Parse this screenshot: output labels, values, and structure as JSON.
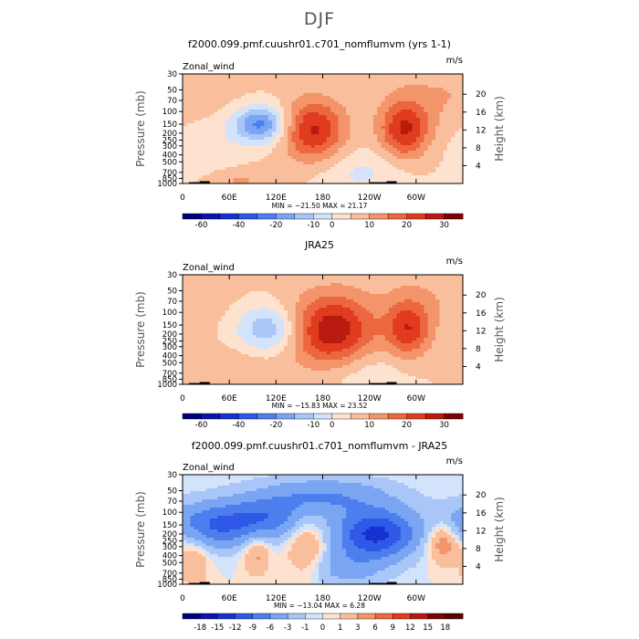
{
  "page": {
    "main_title": "DJF"
  },
  "panels": [
    {
      "id": "model",
      "title": "f2000.099.pmf.cuushr01.c701_nomflumvm (yrs 1-1)",
      "variable": "Zonal_wind",
      "units": "m/s",
      "stats": "MIN = −21.50   MAX =  21.17",
      "palette": "full",
      "colorbar_labels": [
        "-60",
        "-40",
        "-20",
        "-10",
        "0",
        "10",
        "20",
        "30"
      ]
    },
    {
      "id": "obs",
      "title": "JRA25",
      "variable": "Zonal_wind",
      "units": "m/s",
      "stats": "MIN = −15.83   MAX =  23.52",
      "palette": "full",
      "colorbar_labels": [
        "-60",
        "-40",
        "-20",
        "-10",
        "0",
        "10",
        "20",
        "30"
      ]
    },
    {
      "id": "diff",
      "title": "f2000.099.pmf.cuushr01.c701_nomflumvm - JRA25",
      "variable": "Zonal_wind",
      "units": "m/s",
      "stats": "MIN = −13.04   MAX =    6.28",
      "palette": "diff",
      "colorbar_labels": [
        "-18",
        "-15",
        "-12",
        "-9",
        "-6",
        "-3",
        "-1",
        "0",
        "1",
        "3",
        "6",
        "9",
        "12",
        "15",
        "18"
      ]
    }
  ],
  "chart_data": [
    {
      "type": "heatmap",
      "title": "f2000.099.pmf.cuushr01.c701_nomflumvm (yrs 1-1)",
      "xlabel": "",
      "ylabel": "Pressure (mb)",
      "y2label": "Height (km)",
      "x_ticks": [
        "0",
        "60E",
        "120E",
        "180",
        "120W",
        "60W"
      ],
      "x_tick_values": [
        0,
        60,
        120,
        180,
        240,
        300
      ],
      "xlim": [
        0,
        360
      ],
      "y_ticks": [
        "30",
        "50",
        "70",
        "100",
        "150",
        "200",
        "250",
        "300",
        "400",
        "500",
        "700",
        "850",
        "1000"
      ],
      "y_tick_values": [
        30,
        50,
        70,
        100,
        150,
        200,
        250,
        300,
        400,
        500,
        700,
        850,
        1000
      ],
      "ylim": [
        1000,
        30
      ],
      "y2_ticks": [
        "4",
        "8",
        "12",
        "16",
        "20"
      ],
      "y2_tick_values": [
        4,
        8,
        12,
        16,
        20
      ],
      "min": -21.5,
      "max": 21.17,
      "levels": [
        -60,
        -50,
        -40,
        -30,
        -20,
        -15,
        -10,
        -5,
        0,
        5,
        10,
        15,
        20,
        25,
        30
      ],
      "features": [
        {
          "lon": 168,
          "p": 180,
          "value": 21,
          "dlon": 28,
          "dlogp": 0.3
        },
        {
          "lon": 285,
          "p": 180,
          "value": 20,
          "dlon": 22,
          "dlogp": 0.28
        },
        {
          "lon": 100,
          "p": 150,
          "value": -22,
          "dlon": 24,
          "dlogp": 0.18
        },
        {
          "lon": 230,
          "p": 700,
          "value": -6,
          "dlon": 40,
          "dlogp": 0.22
        },
        {
          "lon": 30,
          "p": 300,
          "value": -5,
          "dlon": 30,
          "dlogp": 0.3
        },
        {
          "lon": 70,
          "p": 900,
          "value": 6,
          "dlon": 30,
          "dlogp": 0.12
        },
        {
          "lon": 340,
          "p": 60,
          "value": 5,
          "dlon": 60,
          "dlogp": 0.35
        }
      ]
    },
    {
      "type": "heatmap",
      "title": "JRA25",
      "xlabel": "",
      "ylabel": "Pressure (mb)",
      "y2label": "Height (km)",
      "x_ticks": [
        "0",
        "60E",
        "120E",
        "180",
        "120W",
        "60W"
      ],
      "x_tick_values": [
        0,
        60,
        120,
        180,
        240,
        300
      ],
      "xlim": [
        0,
        360
      ],
      "y_ticks": [
        "30",
        "50",
        "70",
        "100",
        "150",
        "200",
        "250",
        "300",
        "400",
        "500",
        "700",
        "850",
        "1000"
      ],
      "y_tick_values": [
        30,
        50,
        70,
        100,
        150,
        200,
        250,
        300,
        400,
        500,
        700,
        850,
        1000
      ],
      "ylim": [
        1000,
        30
      ],
      "y2_ticks": [
        "4",
        "8",
        "12",
        "16",
        "20"
      ],
      "y2_tick_values": [
        4,
        8,
        12,
        16,
        20
      ],
      "min": -15.83,
      "max": 23.52,
      "levels": [
        -60,
        -50,
        -40,
        -30,
        -20,
        -15,
        -10,
        -5,
        0,
        5,
        10,
        15,
        20,
        25,
        30
      ],
      "features": [
        {
          "lon": 192,
          "p": 180,
          "value": 24,
          "dlon": 38,
          "dlogp": 0.36
        },
        {
          "lon": 290,
          "p": 170,
          "value": 18,
          "dlon": 20,
          "dlogp": 0.28
        },
        {
          "lon": 110,
          "p": 170,
          "value": -15,
          "dlon": 28,
          "dlogp": 0.22
        },
        {
          "lon": 230,
          "p": 650,
          "value": -5,
          "dlon": 40,
          "dlogp": 0.22
        },
        {
          "lon": 60,
          "p": 600,
          "value": 4,
          "dlon": 40,
          "dlogp": 0.2
        },
        {
          "lon": 330,
          "p": 60,
          "value": 4,
          "dlon": 60,
          "dlogp": 0.35
        }
      ]
    },
    {
      "type": "heatmap",
      "title": "f2000.099.pmf.cuushr01.c701_nomflumvm - JRA25",
      "xlabel": "",
      "ylabel": "Pressure (mb)",
      "y2label": "Height (km)",
      "x_ticks": [
        "0",
        "60E",
        "120E",
        "180",
        "120W",
        "60W"
      ],
      "x_tick_values": [
        0,
        60,
        120,
        180,
        240,
        300
      ],
      "xlim": [
        0,
        360
      ],
      "y_ticks": [
        "30",
        "50",
        "70",
        "100",
        "150",
        "200",
        "250",
        "300",
        "400",
        "500",
        "700",
        "850",
        "1000"
      ],
      "y_tick_values": [
        30,
        50,
        70,
        100,
        150,
        200,
        250,
        300,
        400,
        500,
        700,
        850,
        1000
      ],
      "ylim": [
        1000,
        30
      ],
      "y2_ticks": [
        "4",
        "8",
        "12",
        "16",
        "20"
      ],
      "y2_tick_values": [
        4,
        8,
        12,
        16,
        20
      ],
      "min": -13.04,
      "max": 6.28,
      "levels": [
        -18,
        -15,
        -12,
        -9,
        -6,
        -3,
        -1,
        0,
        1,
        3,
        6,
        9,
        12,
        15,
        18
      ],
      "features": [
        {
          "lon": 248,
          "p": 200,
          "value": -13,
          "dlon": 36,
          "dlogp": 0.24
        },
        {
          "lon": 40,
          "p": 150,
          "value": -9,
          "dlon": 45,
          "dlogp": 0.22
        },
        {
          "lon": 110,
          "p": 120,
          "value": -6,
          "dlon": 35,
          "dlogp": 0.2
        },
        {
          "lon": 180,
          "p": 60,
          "value": -6,
          "dlon": 60,
          "dlogp": 0.18
        },
        {
          "lon": 160,
          "p": 300,
          "value": 4,
          "dlon": 18,
          "dlogp": 0.3
        },
        {
          "lon": 95,
          "p": 350,
          "value": 4,
          "dlon": 12,
          "dlogp": 0.22
        },
        {
          "lon": 335,
          "p": 250,
          "value": 6,
          "dlon": 15,
          "dlogp": 0.2
        },
        {
          "lon": 15,
          "p": 400,
          "value": 3,
          "dlon": 14,
          "dlogp": 0.3
        },
        {
          "lon": 210,
          "p": 600,
          "value": -4,
          "dlon": 35,
          "dlogp": 0.18
        }
      ]
    }
  ],
  "colors": {
    "full": [
      "#00007a",
      "#0b14a8",
      "#1631d2",
      "#2f58e6",
      "#4c7eee",
      "#7aa5f2",
      "#a8c6f7",
      "#d2e3fb",
      "#fde2cf",
      "#f9bf9d",
      "#f3946b",
      "#ec673f",
      "#e13b1f",
      "#b81a0f",
      "#7a0404"
    ],
    "diff": [
      "#00007a",
      "#0b14a8",
      "#1631d2",
      "#2f58e6",
      "#4c7eee",
      "#7aa5f2",
      "#a8c6f7",
      "#d2e3fb",
      "#fde2cf",
      "#f9bf9d",
      "#f3946b",
      "#ec673f",
      "#e13b1f",
      "#b81a0f",
      "#7a0404",
      "#5a0000"
    ],
    "topo": "#000000"
  }
}
